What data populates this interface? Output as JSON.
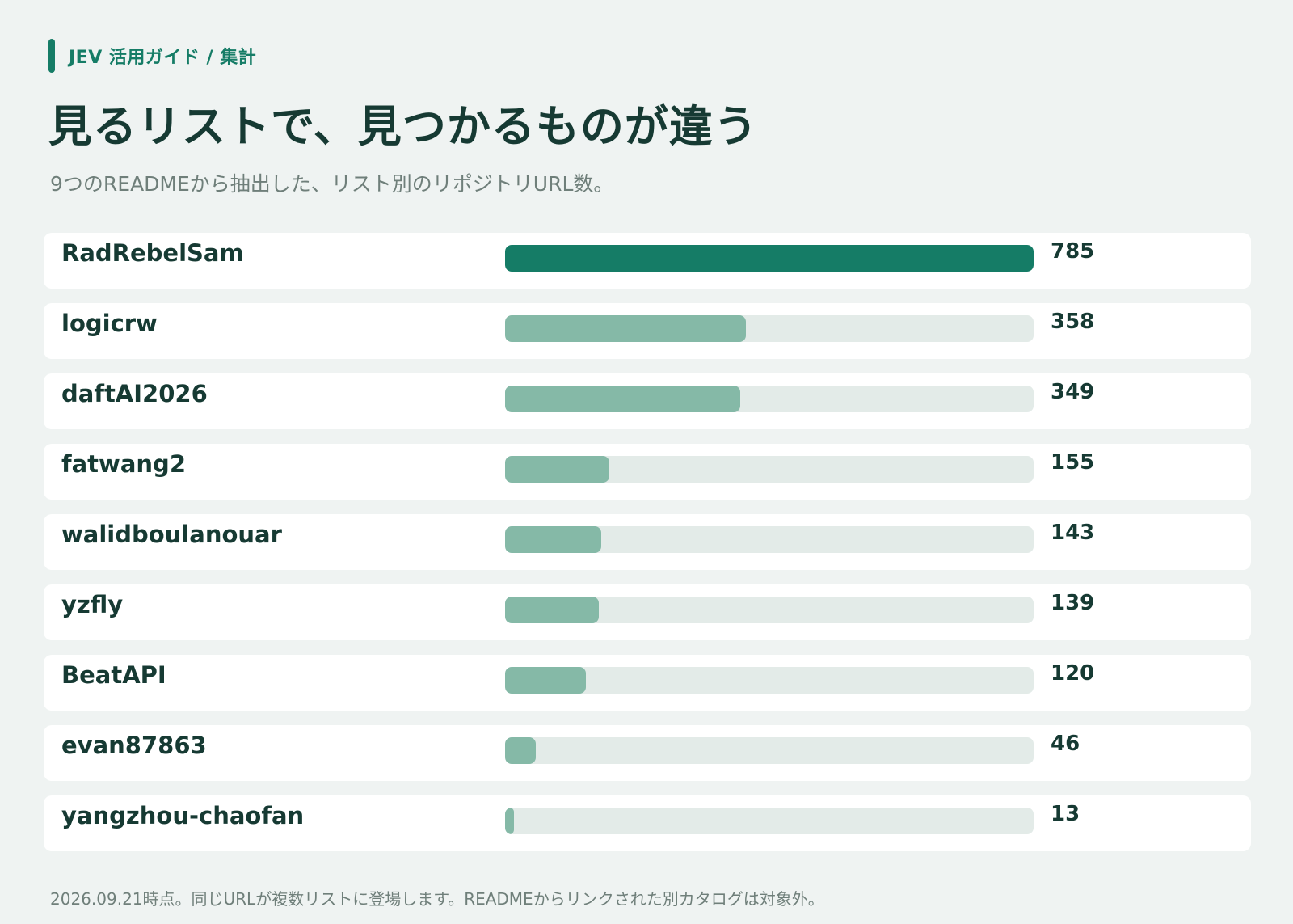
{
  "header": {
    "eyebrow": "JEV 活用ガイド / 集計",
    "title": "見るリストで、見つかるものが違う",
    "subtitle": "9つのREADMEから抽出した、リスト別のリポジトリURL数。"
  },
  "colors": {
    "accent": "#157c66",
    "bar_light": "#85b9a7",
    "track": "#e3ebe8",
    "background": "#eff3f2"
  },
  "chart_data": {
    "type": "bar",
    "orientation": "horizontal",
    "categories": [
      "RadRebelSam",
      "logicrw",
      "daftAI2026",
      "fatwang2",
      "walidboulanouar",
      "yzfly",
      "BeatAPI",
      "evan87863",
      "yangzhou-chaofan"
    ],
    "values": [
      785,
      358,
      349,
      155,
      143,
      139,
      120,
      46,
      13
    ],
    "xlim": [
      0,
      785
    ],
    "grid": false,
    "legend": "none",
    "data_labels": [
      "785",
      "358",
      "349",
      "155",
      "143",
      "139",
      "120",
      "46",
      "13"
    ]
  },
  "footer": {
    "note": "2026.09.21時点。同じURLが複数リストに登場します。READMEからリンクされた別カタログは対象外。"
  }
}
